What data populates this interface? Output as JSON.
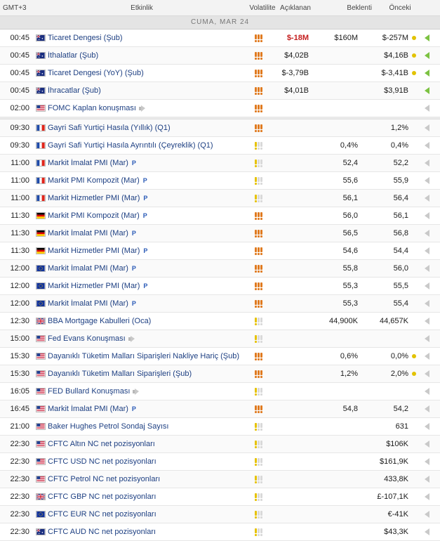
{
  "header": {
    "tz": "GMT+3",
    "event": "Etkinlik",
    "volatility": "Volatilite",
    "actual": "Açıklanan",
    "forecast": "Beklenti",
    "previous": "Önceki"
  },
  "day_label": "CUMA, MAR 24",
  "colors": {
    "us": "#1f3f8f",
    "au": "#1b2f80",
    "fr": "#1e4aa8",
    "de": "#000000",
    "eu": "#12339b",
    "uk": "#163a8c",
    "vol_high": "#e07a1f",
    "vol_med": "#e6c200",
    "vol_off": "#d9d9d9"
  },
  "rows": [
    {
      "time": "00:45",
      "flag": "au",
      "event": "Ticaret Dengesi (Şub)",
      "vol": 3,
      "actual": "$-18M",
      "actual_red": true,
      "forecast": "$160M",
      "previous": "$-257M",
      "dot": true,
      "arrow": "green"
    },
    {
      "time": "00:45",
      "flag": "au",
      "event": "İthalatlar (Şub)",
      "vol": 3,
      "actual": "$4,02B",
      "forecast": "",
      "previous": "$4,16B",
      "dot": true,
      "arrow": "green"
    },
    {
      "time": "00:45",
      "flag": "au",
      "event": "Ticaret Dengesi (YoY) (Şub)",
      "vol": 3,
      "actual": "$-3,79B",
      "forecast": "",
      "previous": "$-3,41B",
      "dot": true,
      "arrow": "green"
    },
    {
      "time": "00:45",
      "flag": "au",
      "event": "İhracatlar (Şub)",
      "vol": 3,
      "actual": "$4,01B",
      "forecast": "",
      "previous": "$3,91B",
      "dot": false,
      "arrow": "green"
    },
    {
      "time": "02:00",
      "flag": "us",
      "event": "FOMC Kaplan konuşması",
      "vol": 3,
      "speech": true,
      "actual": "",
      "forecast": "",
      "previous": "",
      "dot": false,
      "arrow": "gray",
      "gap_after": true
    },
    {
      "time": "09:30",
      "flag": "fr",
      "event": "Gayri Safi Yurtiçi Hasıla (Yıllık) (Q1)",
      "vol": 3,
      "actual": "",
      "forecast": "",
      "previous": "1,2%",
      "dot": false,
      "arrow": "gray"
    },
    {
      "time": "09:30",
      "flag": "fr",
      "event": "Gayri Safi Yurtiçi Hasıla Ayrıntılı (Çeyreklik) (Q1)",
      "vol": 1,
      "actual": "",
      "forecast": "0,4%",
      "previous": "0,4%",
      "dot": false,
      "arrow": "gray"
    },
    {
      "time": "11:00",
      "flag": "fr",
      "event": "Markit İmalat PMI (Mar)",
      "vol": 1,
      "p": true,
      "actual": "",
      "forecast": "52,4",
      "previous": "52,2",
      "dot": false,
      "arrow": "gray"
    },
    {
      "time": "11:00",
      "flag": "fr",
      "event": "Markit PMI Kompozit (Mar)",
      "vol": 1,
      "p": true,
      "actual": "",
      "forecast": "55,6",
      "previous": "55,9",
      "dot": false,
      "arrow": "gray"
    },
    {
      "time": "11:00",
      "flag": "fr",
      "event": "Markit Hizmetler PMI (Mar)",
      "vol": 1,
      "p": true,
      "actual": "",
      "forecast": "56,1",
      "previous": "56,4",
      "dot": false,
      "arrow": "gray"
    },
    {
      "time": "11:30",
      "flag": "de",
      "event": "Markit PMI Kompozit (Mar)",
      "vol": 3,
      "p": true,
      "actual": "",
      "forecast": "56,0",
      "previous": "56,1",
      "dot": false,
      "arrow": "gray"
    },
    {
      "time": "11:30",
      "flag": "de",
      "event": "Markit İmalat PMI (Mar)",
      "vol": 3,
      "p": true,
      "actual": "",
      "forecast": "56,5",
      "previous": "56,8",
      "dot": false,
      "arrow": "gray"
    },
    {
      "time": "11:30",
      "flag": "de",
      "event": "Markit Hizmetler PMI (Mar)",
      "vol": 3,
      "p": true,
      "actual": "",
      "forecast": "54,6",
      "previous": "54,4",
      "dot": false,
      "arrow": "gray"
    },
    {
      "time": "12:00",
      "flag": "eu",
      "event": "Markit İmalat PMI (Mar)",
      "vol": 3,
      "p": true,
      "actual": "",
      "forecast": "55,8",
      "previous": "56,0",
      "dot": false,
      "arrow": "gray"
    },
    {
      "time": "12:00",
      "flag": "eu",
      "event": "Markit Hizmetler PMI (Mar)",
      "vol": 3,
      "p": true,
      "actual": "",
      "forecast": "55,3",
      "previous": "55,5",
      "dot": false,
      "arrow": "gray"
    },
    {
      "time": "12:00",
      "flag": "eu",
      "event": "Markit İmalat PMI (Mar)",
      "vol": 3,
      "p": true,
      "actual": "",
      "forecast": "55,3",
      "previous": "55,4",
      "dot": false,
      "arrow": "gray"
    },
    {
      "time": "12:30",
      "flag": "uk",
      "event": "BBA Mortgage Kabulleri (Oca)",
      "vol": 1,
      "actual": "",
      "forecast": "44,900K",
      "previous": "44,657K",
      "dot": false,
      "arrow": "gray"
    },
    {
      "time": "15:00",
      "flag": "us",
      "event": "Fed Evans Konuşması",
      "vol": 1,
      "speech": true,
      "actual": "",
      "forecast": "",
      "previous": "",
      "dot": false,
      "arrow": "gray"
    },
    {
      "time": "15:30",
      "flag": "us",
      "event": "Dayanıklı Tüketim Malları Siparişleri Nakliye Hariç (Şub)",
      "vol": 3,
      "actual": "",
      "forecast": "0,6%",
      "previous": "0,0%",
      "dot": true,
      "arrow": "gray"
    },
    {
      "time": "15:30",
      "flag": "us",
      "event": "Dayanıklı Tüketim Malları Siparişleri (Şub)",
      "vol": 3,
      "actual": "",
      "forecast": "1,2%",
      "previous": "2,0%",
      "dot": true,
      "arrow": "gray"
    },
    {
      "time": "16:05",
      "flag": "us",
      "event": "FED Bullard Konuşması",
      "vol": 1,
      "speech": true,
      "actual": "",
      "forecast": "",
      "previous": "",
      "dot": false,
      "arrow": "gray"
    },
    {
      "time": "16:45",
      "flag": "us",
      "event": "Markit İmalat PMI (Mar)",
      "vol": 3,
      "p": true,
      "actual": "",
      "forecast": "54,8",
      "previous": "54,2",
      "dot": false,
      "arrow": "gray"
    },
    {
      "time": "21:00",
      "flag": "us",
      "event": "Baker Hughes Petrol Sondaj Sayısı",
      "vol": 1,
      "actual": "",
      "forecast": "",
      "previous": "631",
      "dot": false,
      "arrow": "gray"
    },
    {
      "time": "22:30",
      "flag": "us",
      "event": "CFTC Altın NC net pozisyonları",
      "vol": 1,
      "actual": "",
      "forecast": "",
      "previous": "$106K",
      "dot": false,
      "arrow": "gray"
    },
    {
      "time": "22:30",
      "flag": "us",
      "event": "CFTC USD NC net pozisyonları",
      "vol": 1,
      "actual": "",
      "forecast": "",
      "previous": "$161,9K",
      "dot": false,
      "arrow": "gray"
    },
    {
      "time": "22:30",
      "flag": "us",
      "event": "CFTC Petrol NC net pozisyonları",
      "vol": 1,
      "actual": "",
      "forecast": "",
      "previous": "433,8K",
      "dot": false,
      "arrow": "gray"
    },
    {
      "time": "22:30",
      "flag": "uk",
      "event": "CFTC GBP NC net pozisyonları",
      "vol": 1,
      "actual": "",
      "forecast": "",
      "previous": "£-107,1K",
      "dot": false,
      "arrow": "gray"
    },
    {
      "time": "22:30",
      "flag": "eu",
      "event": "CFTC EUR NC net pozisyonları",
      "vol": 1,
      "actual": "",
      "forecast": "",
      "previous": "€-41K",
      "dot": false,
      "arrow": "gray"
    },
    {
      "time": "22:30",
      "flag": "au",
      "event": "CFTC AUD NC net pozisyonları",
      "vol": 1,
      "actual": "",
      "forecast": "",
      "previous": "$43,3K",
      "dot": false,
      "arrow": "gray"
    }
  ]
}
